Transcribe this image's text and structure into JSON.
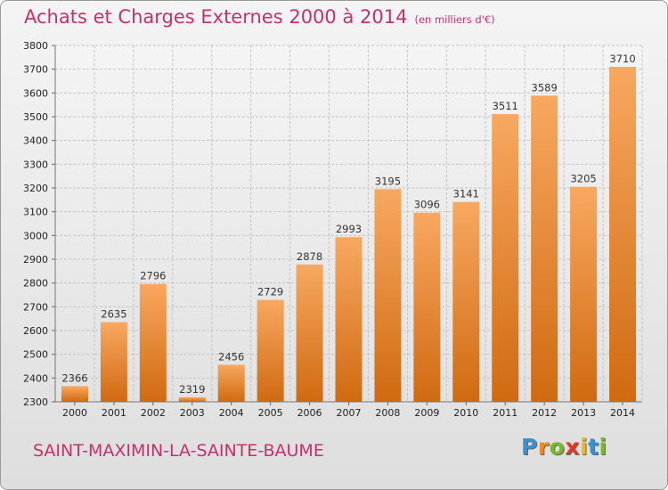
{
  "header": {
    "title": "Achats et Charges Externes 2000 à 2014",
    "unit": "(en milliers d'€)"
  },
  "footer": {
    "city": "SAINT-MAXIMIN-LA-SAINTE-BAUME",
    "brand": [
      "P",
      "r",
      "o",
      "x",
      "i",
      "t",
      "i"
    ]
  },
  "colors": {
    "title": "#c8306b",
    "bar_top": "#f8a860",
    "bar_bottom": "#d06a10",
    "brand": [
      "#3a8fd0",
      "#f08a1c",
      "#7ab82a",
      "#e03a2a",
      "#f0b81c",
      "#3a8fd0",
      "#7ab82a"
    ]
  },
  "chart_data": {
    "type": "bar",
    "title": "Achats et Charges Externes 2000 à 2014",
    "subtitle": "(en milliers d'€)",
    "xlabel": "",
    "ylabel": "",
    "categories": [
      "2000",
      "2001",
      "2002",
      "2003",
      "2004",
      "2005",
      "2006",
      "2007",
      "2008",
      "2009",
      "2010",
      "2011",
      "2012",
      "2013",
      "2014"
    ],
    "values": [
      2366,
      2635,
      2796,
      2319,
      2456,
      2729,
      2878,
      2993,
      3195,
      3096,
      3141,
      3511,
      3589,
      3205,
      3710
    ],
    "ylim": [
      2300,
      3800
    ],
    "yticks": [
      2300,
      2400,
      2500,
      2600,
      2700,
      2800,
      2900,
      3000,
      3100,
      3200,
      3300,
      3400,
      3500,
      3600,
      3700,
      3800
    ],
    "grid": true,
    "data_labels": true
  }
}
